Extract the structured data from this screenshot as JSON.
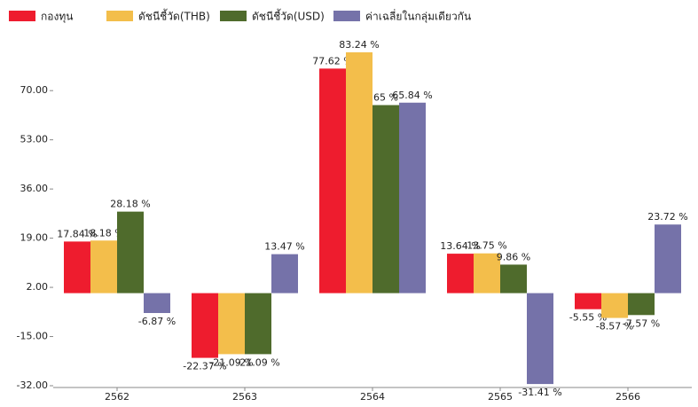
{
  "chart_data": {
    "type": "bar",
    "categories": [
      "2562",
      "2563",
      "2564",
      "2565",
      "2566"
    ],
    "series": [
      {
        "name": "กองทุน",
        "color": "#ee1c2e",
        "values": [
          17.84,
          -22.37,
          77.62,
          13.64,
          -5.55
        ],
        "value_labels": [
          "17.84 %",
          "-22.37 %",
          "77.62 %",
          "13.64 %",
          "-5.55 %"
        ]
      },
      {
        "name": "ดัชนีชี้วัด(THB)",
        "color": "#f3be4b",
        "values": [
          18.18,
          -21.09,
          83.24,
          13.75,
          -8.57
        ],
        "value_labels": [
          "18.18 %",
          "-21.09 %",
          "83.24 %",
          "13.75 %",
          "-8.57 %"
        ]
      },
      {
        "name": "ดัชนีชี้วัด(USD)",
        "color": "#4f6b2c",
        "values": [
          28.18,
          -21.09,
          65,
          9.86,
          -7.57
        ],
        "value_labels": [
          "28.18 %",
          "-21.09 %",
          "65 %",
          "9.86 %",
          "-7.57 %"
        ]
      },
      {
        "name": "ค่าเฉลี่ยในกลุ่มเดียวกัน",
        "color": "#7572a9",
        "values": [
          -6.87,
          13.47,
          65.84,
          -31.41,
          23.72
        ],
        "value_labels": [
          "-6.87 %",
          "13.47 %",
          "65.84 %",
          "-31.41 %",
          "23.72 %"
        ]
      }
    ],
    "ylim": [
      -32,
      86
    ],
    "yticks": [
      {
        "value": 70,
        "label": "70.00"
      },
      {
        "value": 53,
        "label": "53.00"
      },
      {
        "value": 36,
        "label": "36.00"
      },
      {
        "value": 19,
        "label": "19.00"
      },
      {
        "value": 2,
        "label": "2.00"
      },
      {
        "value": -15,
        "label": "-15.00"
      },
      {
        "value": -32,
        "label": "-32.00"
      }
    ],
    "grid": false
  }
}
